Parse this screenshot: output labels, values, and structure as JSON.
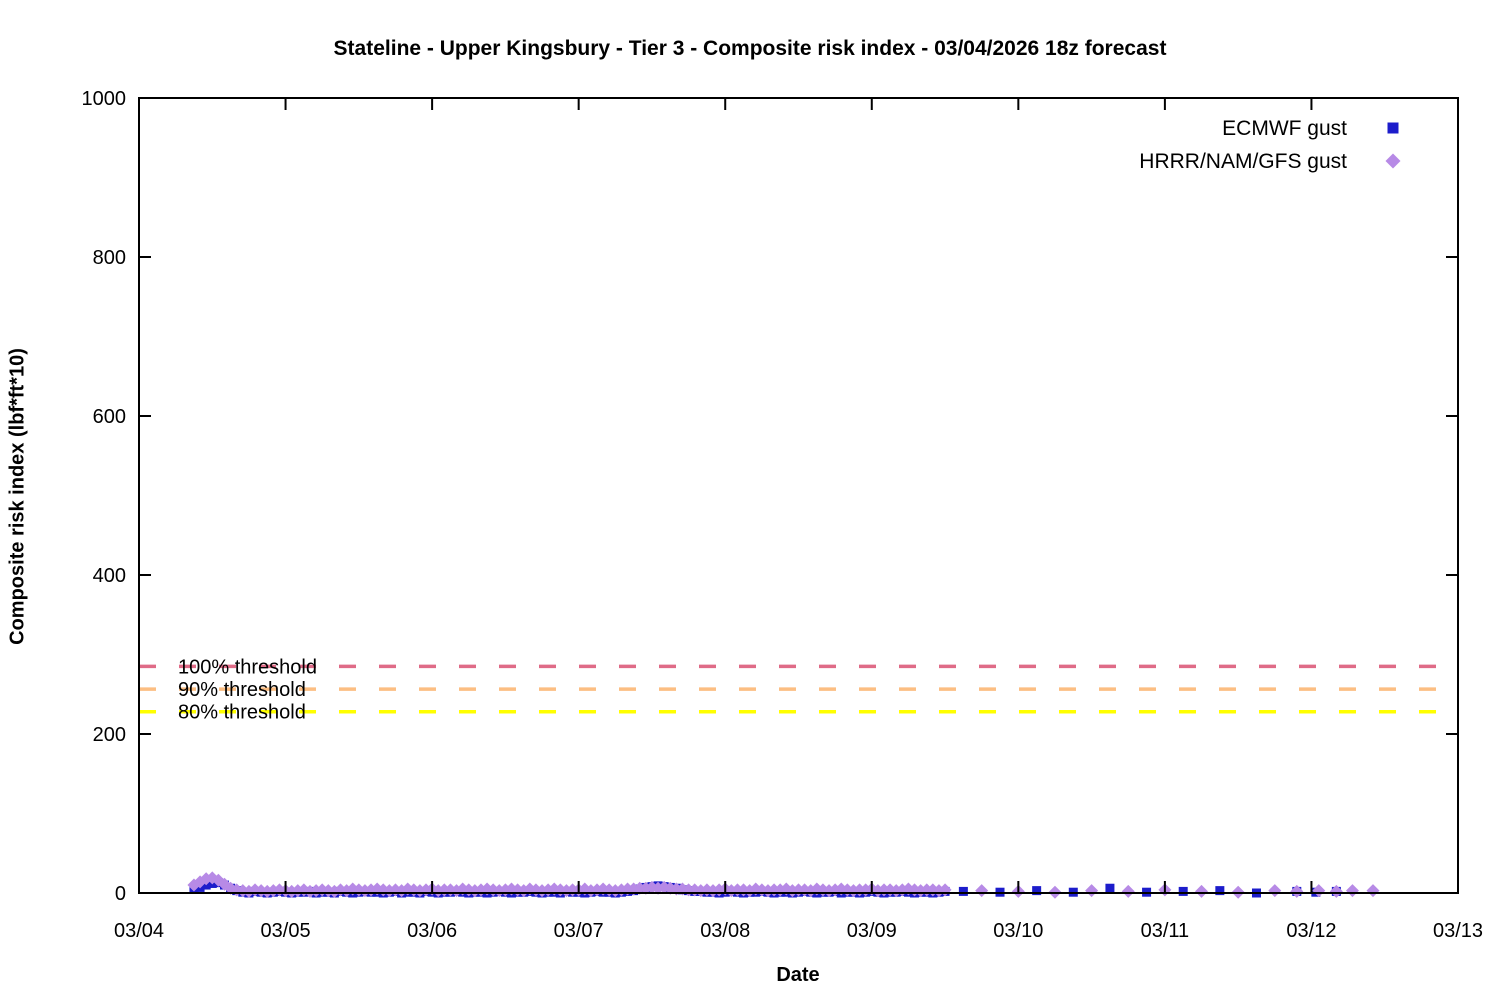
{
  "title": "Stateline - Upper Kingsbury - Tier 3 - Composite risk index - 03/04/2026 18z forecast",
  "x_axis": {
    "label": "Date",
    "tick_labels": [
      "03/04",
      "03/05",
      "03/06",
      "03/07",
      "03/08",
      "03/09",
      "03/10",
      "03/11",
      "03/12",
      "03/13"
    ]
  },
  "y_axis": {
    "label": "Composite risk index (lbf*ft*10)",
    "tick_values": [
      0,
      200,
      400,
      600,
      800,
      1000
    ]
  },
  "chart_data": {
    "type": "scatter",
    "title": "Stateline - Upper Kingsbury - Tier 3 - Composite risk index - 03/04/2026 18z forecast",
    "xlabel": "Date",
    "ylabel": "Composite risk index (lbf*ft*10)",
    "x_unit": "days since 03/04 00:00 (tick labels are dates)",
    "x_range": [
      0,
      9
    ],
    "y_range": [
      0,
      1000
    ],
    "grid": false,
    "legend_position": "top-right-inside",
    "thresholds": [
      {
        "label": "100% threshold",
        "value": 285,
        "color": "#df6b87",
        "style": "dashed"
      },
      {
        "label": "90% threshold",
        "value": 256.5,
        "color": "#fcbe82",
        "style": "dashed"
      },
      {
        "label": "80% threshold",
        "value": 228,
        "color": "#ffff00",
        "style": "dashed"
      }
    ],
    "series": [
      {
        "name": "ECMWF gust",
        "marker": "square",
        "color": "#1c1ccb",
        "segments": [
          {
            "t0": 0.375,
            "dt": 0.0416667,
            "values": [
              5,
              7,
              10,
              12,
              13,
              10,
              6,
              3,
              1,
              0,
              2,
              1,
              0,
              1,
              2,
              1,
              0,
              1,
              1,
              2,
              0,
              1,
              1,
              0,
              2,
              1,
              0,
              1,
              2,
              1,
              1,
              0,
              1,
              2,
              0,
              1,
              1,
              0,
              2,
              1,
              0,
              1,
              1,
              2,
              1,
              0,
              1,
              1,
              0,
              1,
              2,
              1,
              0,
              1,
              1,
              2,
              1,
              0,
              1,
              1,
              0,
              2,
              1,
              1,
              0,
              1,
              2,
              1,
              1,
              0,
              1,
              2,
              3,
              5,
              7,
              8,
              9,
              8,
              7,
              6,
              4,
              3,
              2,
              2,
              1,
              1,
              0,
              1,
              2,
              1,
              0,
              1,
              1,
              2,
              1,
              0,
              1,
              1,
              0,
              1,
              2,
              1,
              0,
              1,
              1,
              2,
              0,
              1,
              1,
              0,
              1,
              2,
              1,
              0,
              1,
              1,
              2,
              1,
              0,
              1,
              1,
              0,
              1,
              2
            ]
          }
        ],
        "points": [
          [
            5.625,
            2
          ],
          [
            5.875,
            1
          ],
          [
            6.125,
            3
          ],
          [
            6.375,
            1
          ],
          [
            6.625,
            6
          ],
          [
            6.875,
            1
          ],
          [
            7.125,
            2
          ],
          [
            7.375,
            3
          ],
          [
            7.625,
            0
          ],
          [
            7.9,
            2
          ],
          [
            8.03,
            1
          ],
          [
            8.17,
            2
          ]
        ]
      },
      {
        "name": "HRRR/NAM/GFS gust",
        "marker": "diamond",
        "color": "#b78ae6",
        "segments": [
          {
            "t0": 0.375,
            "dt": 0.0416667,
            "values": [
              10,
              14,
              18,
              19,
              16,
              11,
              6,
              4,
              3,
              2,
              4,
              3,
              2,
              3,
              4,
              3,
              2,
              3,
              4,
              2,
              3,
              4,
              3,
              2,
              4,
              3,
              5,
              4,
              3,
              4,
              5,
              4,
              3,
              4,
              3,
              5,
              4,
              3,
              4,
              5,
              3,
              4,
              4,
              3,
              5,
              4,
              3,
              4,
              5,
              4,
              3,
              4,
              5,
              4,
              3,
              5,
              4,
              3,
              4,
              5,
              4,
              3,
              4,
              4,
              5,
              3,
              4,
              5,
              4,
              3,
              4,
              5,
              5,
              6,
              6,
              7,
              6,
              7,
              6,
              5,
              5,
              4,
              4,
              3,
              4,
              3,
              4,
              5,
              3,
              4,
              4,
              3,
              5,
              4,
              3,
              4,
              4,
              5,
              3,
              4,
              4,
              3,
              5,
              4,
              3,
              4,
              5,
              4,
              3,
              4,
              4,
              5,
              3,
              4,
              4,
              3,
              4,
              5,
              4,
              3,
              4,
              4,
              3,
              4
            ]
          }
        ],
        "points": [
          [
            5.75,
            3
          ],
          [
            6.0,
            2
          ],
          [
            6.25,
            1
          ],
          [
            6.5,
            3
          ],
          [
            6.75,
            2
          ],
          [
            7.0,
            4
          ],
          [
            7.25,
            2
          ],
          [
            7.5,
            1
          ],
          [
            7.75,
            3
          ],
          [
            7.9,
            2
          ],
          [
            8.05,
            3
          ],
          [
            8.17,
            2
          ],
          [
            8.28,
            3
          ],
          [
            8.42,
            3
          ]
        ]
      }
    ],
    "legend": [
      {
        "label": "ECMWF gust",
        "marker": "square",
        "color": "#1c1ccb"
      },
      {
        "label": "HRRR/NAM/GFS gust",
        "marker": "diamond",
        "color": "#b78ae6"
      }
    ]
  }
}
